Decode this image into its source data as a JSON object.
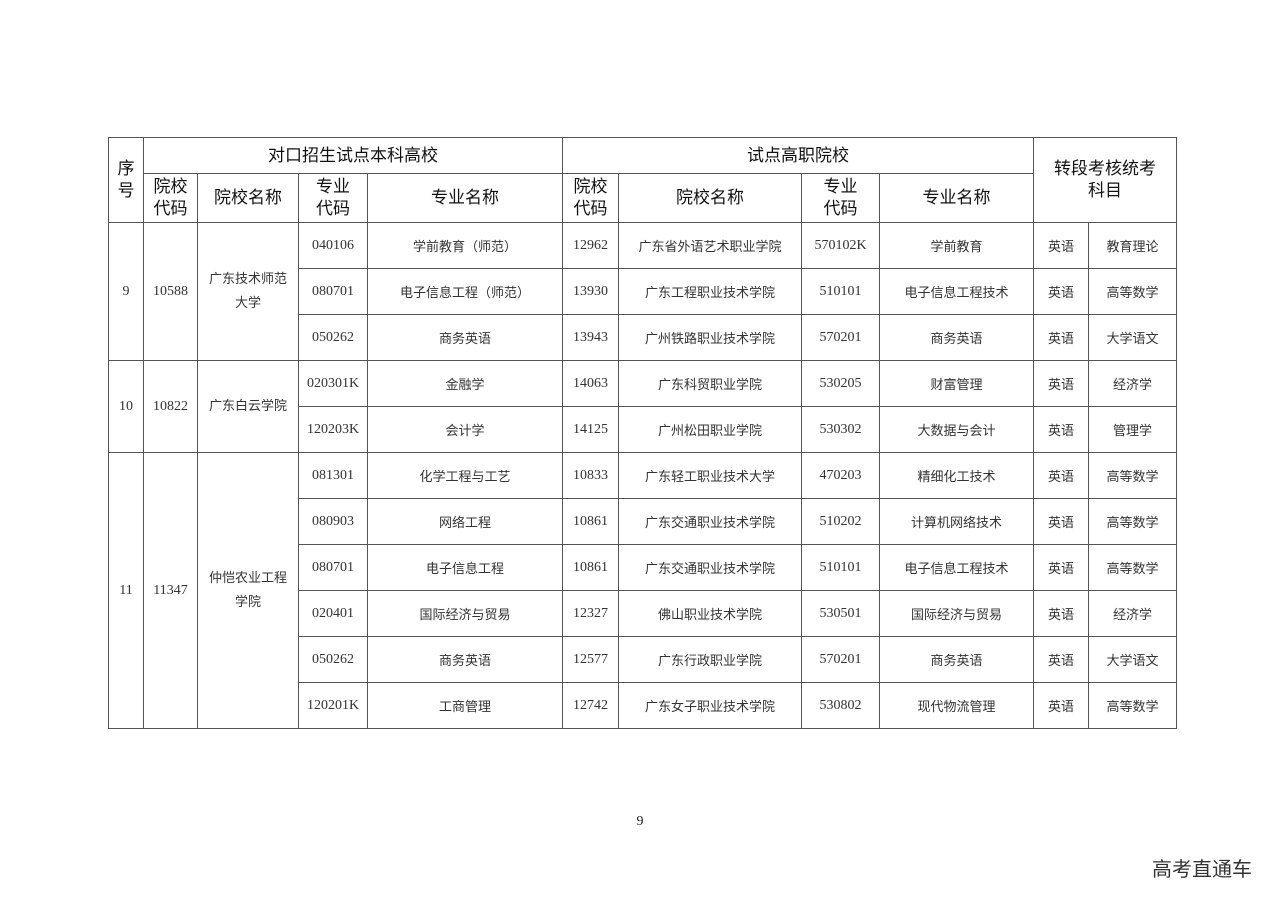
{
  "header": {
    "seq": "序号",
    "group_undergrad": "对口招生试点本科高校",
    "group_vocational": "试点高职院校",
    "group_exam": "转段考核统考科目",
    "school_code": "院校代码",
    "school_name": "院校名称",
    "major_code": "专业代码",
    "major_name": "专业名称"
  },
  "groups": [
    {
      "seq": "9",
      "code": "10588",
      "name": "广东技术师范大学",
      "rows": [
        [
          "040106",
          "学前教育（师范）",
          "12962",
          "广东省外语艺术职业学院",
          "570102K",
          "学前教育",
          "英语",
          "教育理论"
        ],
        [
          "080701",
          "电子信息工程（师范）",
          "13930",
          "广东工程职业技术学院",
          "510101",
          "电子信息工程技术",
          "英语",
          "高等数学"
        ],
        [
          "050262",
          "商务英语",
          "13943",
          "广州铁路职业技术学院",
          "570201",
          "商务英语",
          "英语",
          "大学语文"
        ]
      ]
    },
    {
      "seq": "10",
      "code": "10822",
      "name": "广东白云学院",
      "rows": [
        [
          "020301K",
          "金融学",
          "14063",
          "广东科贸职业学院",
          "530205",
          "财富管理",
          "英语",
          "经济学"
        ],
        [
          "120203K",
          "会计学",
          "14125",
          "广州松田职业学院",
          "530302",
          "大数据与会计",
          "英语",
          "管理学"
        ]
      ]
    },
    {
      "seq": "11",
      "code": "11347",
      "name": "仲恺农业工程学院",
      "rows": [
        [
          "081301",
          "化学工程与工艺",
          "10833",
          "广东轻工职业技术大学",
          "470203",
          "精细化工技术",
          "英语",
          "高等数学"
        ],
        [
          "080903",
          "网络工程",
          "10861",
          "广东交通职业技术学院",
          "510202",
          "计算机网络技术",
          "英语",
          "高等数学"
        ],
        [
          "080701",
          "电子信息工程",
          "10861",
          "广东交通职业技术学院",
          "510101",
          "电子信息工程技术",
          "英语",
          "高等数学"
        ],
        [
          "020401",
          "国际经济与贸易",
          "12327",
          "佛山职业技术学院",
          "530501",
          "国际经济与贸易",
          "英语",
          "经济学"
        ],
        [
          "050262",
          "商务英语",
          "12577",
          "广东行政职业学院",
          "570201",
          "商务英语",
          "英语",
          "大学语文"
        ],
        [
          "120201K",
          "工商管理",
          "12742",
          "广东女子职业技术学院",
          "530802",
          "现代物流管理",
          "英语",
          "高等数学"
        ]
      ]
    }
  ],
  "page_number": "9",
  "watermark": "高考直通车"
}
